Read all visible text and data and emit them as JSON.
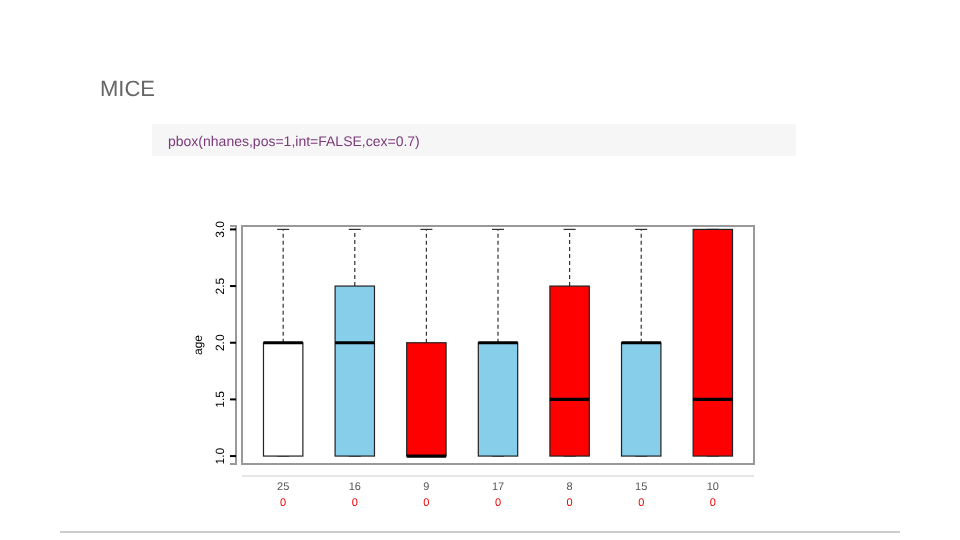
{
  "chart_data": {
    "type": "box",
    "title": "MICE",
    "subtitle": "pbox(nhanes,pos=1,int=FALSE,cex=0.7)",
    "ylabel": "age",
    "categories": [
      "25",
      "16",
      "9",
      "17",
      "8",
      "15",
      "10"
    ],
    "colors": [
      "#ffffff",
      "#87ceeb",
      "#ff0000",
      "#87ceeb",
      "#ff0000",
      "#87ceeb",
      "#ff0000"
    ],
    "boxes": [
      {
        "low": 1,
        "q1": 1,
        "median": 2,
        "q3": 2,
        "high": 3
      },
      {
        "low": 1,
        "q1": 1,
        "median": 2,
        "q3": 2.5,
        "high": 3
      },
      {
        "low": 1,
        "q1": 1,
        "median": 1,
        "q3": 2,
        "high": 3
      },
      {
        "low": 1,
        "q1": 1,
        "median": 2,
        "q3": 2,
        "high": 3
      },
      {
        "low": 1,
        "q1": 1,
        "median": 1.5,
        "q3": 2.5,
        "high": 3
      },
      {
        "low": 1,
        "q1": 1,
        "median": 2,
        "q3": 2,
        "high": 3
      },
      {
        "low": 1,
        "q1": 1,
        "median": 1.5,
        "q3": 3,
        "high": 3
      }
    ],
    "ylim": [
      0.93,
      3.03
    ],
    "yticks": [
      {
        "value": 1,
        "label": "1.0"
      },
      {
        "value": 1.5,
        "label": "1.5"
      },
      {
        "value": 2,
        "label": "2.0"
      },
      {
        "value": 2.5,
        "label": "2.5"
      },
      {
        "value": 3,
        "label": "3.0"
      }
    ],
    "annotations": [
      "0",
      "0",
      "0",
      "0",
      "0",
      "0",
      "0"
    ]
  }
}
